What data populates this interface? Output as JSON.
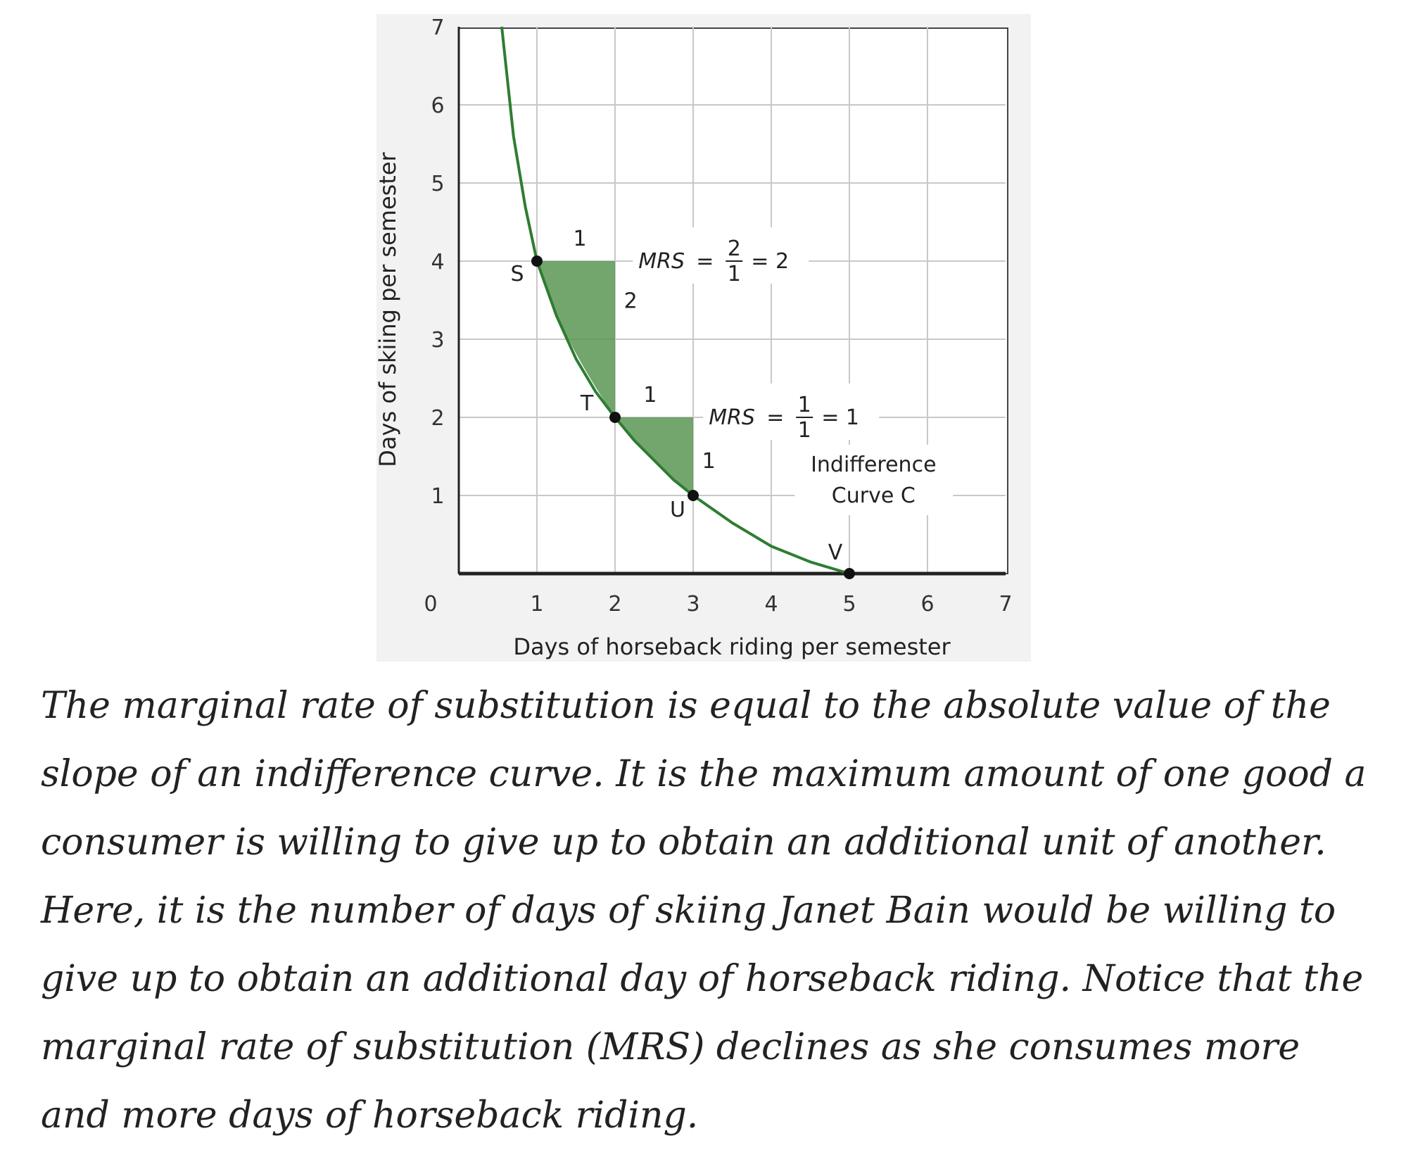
{
  "chart_data": {
    "type": "line",
    "xlabel": "Days of horseback riding per semester",
    "ylabel": "Days of skiing per semester",
    "xlim": [
      0,
      7
    ],
    "ylim": [
      0,
      7
    ],
    "x_ticks": [
      "0",
      "1",
      "2",
      "3",
      "4",
      "5",
      "6",
      "7"
    ],
    "y_ticks": [
      "1",
      "2",
      "3",
      "4",
      "5",
      "6",
      "7"
    ],
    "grid": true,
    "series": [
      {
        "name": "Indifference Curve C",
        "color": "#2e7d32",
        "x": [
          0.55,
          0.7,
          0.85,
          1,
          1.25,
          1.5,
          1.75,
          2,
          2.25,
          2.5,
          2.75,
          3,
          3.5,
          4,
          4.5,
          5
        ],
        "y": [
          7.0,
          5.6,
          4.7,
          4,
          3.3,
          2.75,
          2.33,
          2,
          1.7,
          1.45,
          1.2,
          1,
          0.65,
          0.35,
          0.15,
          0
        ]
      }
    ],
    "points": [
      {
        "label": "S",
        "x": 1,
        "y": 4
      },
      {
        "label": "T",
        "x": 2,
        "y": 2
      },
      {
        "label": "U",
        "x": 3,
        "y": 1
      },
      {
        "label": "V",
        "x": 5,
        "y": 0
      }
    ],
    "shaded_regions": [
      {
        "from": "S",
        "to": "T",
        "run": "1",
        "rise": "2",
        "color": "#5a9654"
      },
      {
        "from": "T",
        "to": "U",
        "run": "1",
        "rise": "1",
        "color": "#5a9654"
      }
    ],
    "annotations": {
      "mrs1": {
        "prefix": "MRS",
        "equals": "=",
        "num": "2",
        "den": "1",
        "result": "= 2"
      },
      "mrs2": {
        "prefix": "MRS",
        "equals": "=",
        "num": "1",
        "den": "1",
        "result": "= 1"
      },
      "curve_label_line1": "Indifference",
      "curve_label_line2": "Curve C"
    }
  },
  "caption": "The marginal rate of substitution is equal to the absolute value of the slope of an indifference curve. It is the maximum amount of one good a consumer is willing to give up to obtain an additional unit of another. Here, it is the number of days of skiing Janet Bain would be willing to give up to obtain an additional day of horseback riding. Notice that the marginal rate of substitution (MRS) declines as she consumes more and more days of horseback riding."
}
